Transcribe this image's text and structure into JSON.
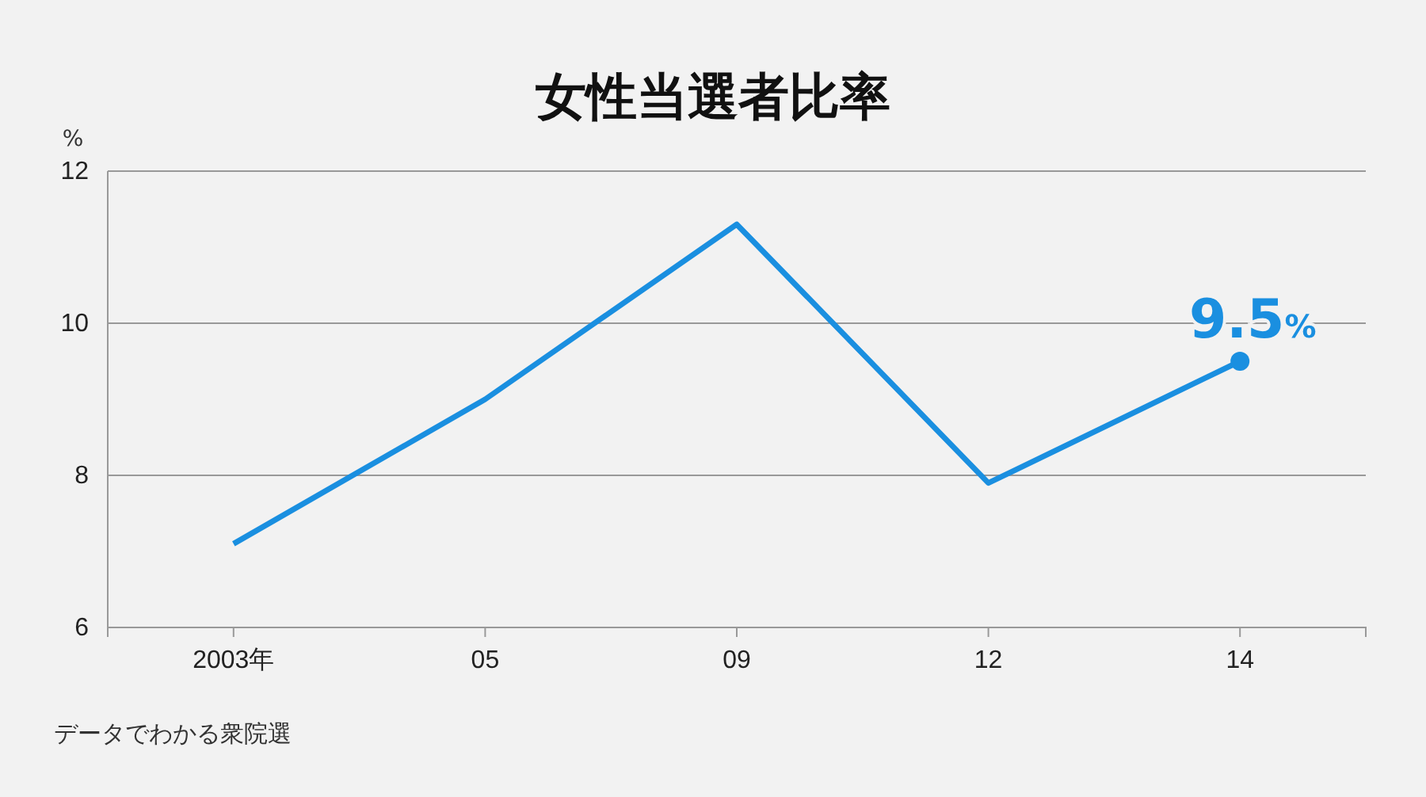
{
  "chart_data": {
    "type": "line",
    "title": "女性当選者比率",
    "ylabel": "%",
    "categories": [
      "2003年",
      "05",
      "09",
      "12",
      "14"
    ],
    "series": [
      {
        "color": "#1a8fe0",
        "values": [
          7.1,
          9.0,
          11.3,
          7.9,
          9.5
        ],
        "value_labels": [
          null,
          null,
          null,
          null,
          "9.5%"
        ]
      }
    ],
    "ylim": [
      6,
      12
    ],
    "yticks": [
      6,
      8,
      10,
      12
    ],
    "grid": "y",
    "marker": "none",
    "line_style": "solid",
    "annotations": [
      "データでわかる衆院選"
    ]
  }
}
